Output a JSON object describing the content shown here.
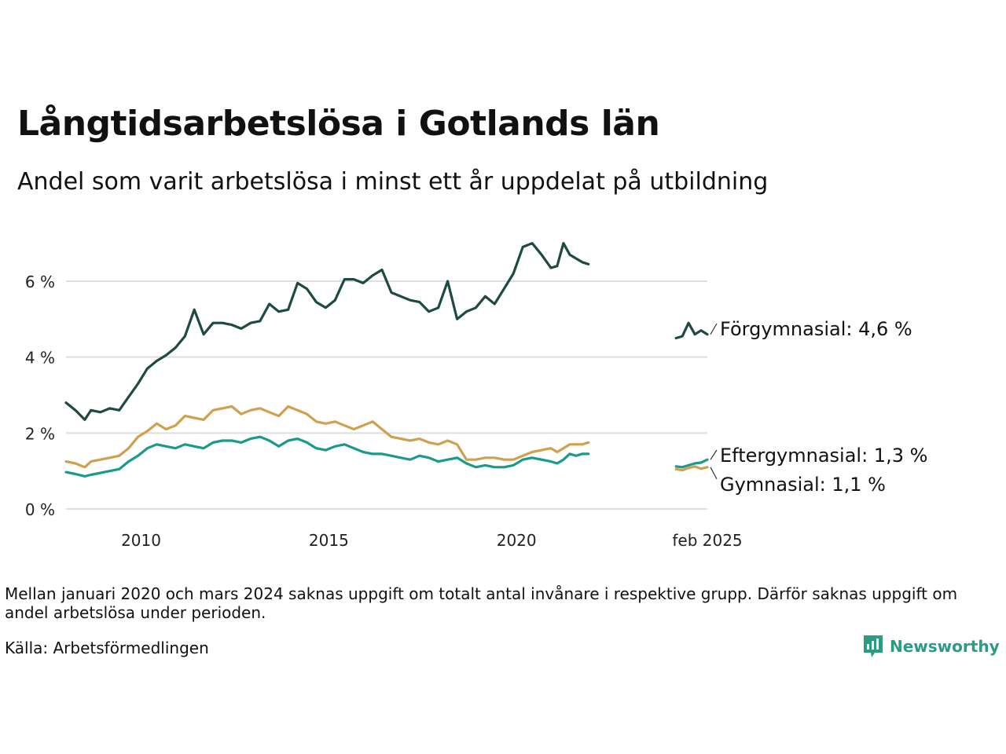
{
  "title": "Långtidsarbetslösa i Gotlands län",
  "subtitle": "Andel som varit arbetslösa i minst ett år uppdelat på utbildning",
  "note": "Mellan januari 2020 och mars 2024 saknas uppgift om totalt antal invånare i respektive grupp. Därför saknas uppgift om andel arbetslösa under perioden.",
  "source": "Källa: Arbetsförmedlingen",
  "brand": {
    "name": "Newsworthy",
    "color": "#2b9b83"
  },
  "chart_data": {
    "type": "line",
    "title": "Långtidsarbetslösa i Gotlands län",
    "subtitle": "Andel som varit arbetslösa i minst ett år uppdelat på utbildning",
    "y_ticks": [
      {
        "value": 0,
        "label": "0 %"
      },
      {
        "value": 2,
        "label": "2 %"
      },
      {
        "value": 4,
        "label": "4 %"
      },
      {
        "value": 6,
        "label": "6 %"
      }
    ],
    "x_ticks": [
      {
        "value": "2010",
        "label": "2010"
      },
      {
        "value": "2015",
        "label": "2015"
      },
      {
        "value": "2020",
        "label": "2020"
      },
      {
        "value": "2025-02",
        "label": "feb 2025"
      }
    ],
    "ylim": [
      0,
      7.2
    ],
    "xlim": [
      "2008-01",
      "2025-02"
    ],
    "grid": true,
    "series": [
      {
        "name": "Förgymnasial",
        "end_label": "Förgymnasial: 4,6 %",
        "color": "#1f4a43",
        "segments": [
          {
            "x": [
              "2008-01",
              "2008-04",
              "2008-07",
              "2008-09",
              "2008-12",
              "2009-03",
              "2009-06",
              "2009-09",
              "2009-12",
              "2010-03",
              "2010-06",
              "2010-09",
              "2010-12",
              "2011-03",
              "2011-06",
              "2011-09",
              "2011-12",
              "2012-03",
              "2012-06",
              "2012-09",
              "2012-12",
              "2013-03",
              "2013-06",
              "2013-09",
              "2013-12",
              "2014-03",
              "2014-06",
              "2014-09",
              "2014-12",
              "2015-03",
              "2015-06",
              "2015-09",
              "2015-12",
              "2016-03",
              "2016-06",
              "2016-09",
              "2016-12",
              "2017-03",
              "2017-06",
              "2017-09",
              "2017-12",
              "2018-03",
              "2018-06",
              "2018-09",
              "2018-12",
              "2019-03",
              "2019-06",
              "2019-09",
              "2019-12",
              "2020-03",
              "2020-06",
              "2020-09",
              "2020-12",
              "2021-02",
              "2021-04",
              "2021-06",
              "2021-08",
              "2021-10",
              "2021-12"
            ],
            "y": [
              2.8,
              2.6,
              2.35,
              2.6,
              2.55,
              2.65,
              2.6,
              2.95,
              3.3,
              3.7,
              3.9,
              4.05,
              4.25,
              4.55,
              5.25,
              4.6,
              4.9,
              4.9,
              4.85,
              4.75,
              4.9,
              4.95,
              5.4,
              5.2,
              5.25,
              5.95,
              5.8,
              5.45,
              5.3,
              5.5,
              6.05,
              6.05,
              5.95,
              6.15,
              6.3,
              5.7,
              5.6,
              5.5,
              5.45,
              5.2,
              5.3,
              6.0,
              5.0,
              5.2,
              5.3,
              5.6,
              5.4,
              5.8,
              6.2,
              6.9,
              7.0,
              6.7,
              6.35,
              6.4,
              7.0,
              6.7,
              6.6,
              6.5,
              6.45
            ]
          },
          {
            "x": [
              "2024-04",
              "2024-06",
              "2024-08",
              "2024-10",
              "2024-12",
              "2025-02"
            ],
            "y": [
              4.5,
              4.55,
              4.9,
              4.6,
              4.7,
              4.6
            ]
          }
        ]
      },
      {
        "name": "Eftergymnasial",
        "end_label": "Eftergymnasial: 1,3 %",
        "color": "#1a9a8a",
        "segments": [
          {
            "x": [
              "2008-01",
              "2008-04",
              "2008-07",
              "2008-09",
              "2008-12",
              "2009-03",
              "2009-06",
              "2009-09",
              "2009-12",
              "2010-03",
              "2010-06",
              "2010-09",
              "2010-12",
              "2011-03",
              "2011-06",
              "2011-09",
              "2011-12",
              "2012-03",
              "2012-06",
              "2012-09",
              "2012-12",
              "2013-03",
              "2013-06",
              "2013-09",
              "2013-12",
              "2014-03",
              "2014-06",
              "2014-09",
              "2014-12",
              "2015-03",
              "2015-06",
              "2015-09",
              "2015-12",
              "2016-03",
              "2016-06",
              "2016-09",
              "2016-12",
              "2017-03",
              "2017-06",
              "2017-09",
              "2017-12",
              "2018-03",
              "2018-06",
              "2018-09",
              "2018-12",
              "2019-03",
              "2019-06",
              "2019-09",
              "2019-12",
              "2020-03",
              "2020-06",
              "2020-09",
              "2020-12",
              "2021-02",
              "2021-04",
              "2021-06",
              "2021-08",
              "2021-10",
              "2021-12"
            ],
            "y": [
              0.97,
              0.92,
              0.86,
              0.9,
              0.95,
              1.0,
              1.05,
              1.25,
              1.4,
              1.6,
              1.7,
              1.65,
              1.6,
              1.7,
              1.65,
              1.6,
              1.75,
              1.8,
              1.8,
              1.75,
              1.85,
              1.9,
              1.8,
              1.65,
              1.8,
              1.85,
              1.75,
              1.6,
              1.55,
              1.65,
              1.7,
              1.6,
              1.5,
              1.45,
              1.45,
              1.4,
              1.35,
              1.3,
              1.4,
              1.35,
              1.25,
              1.3,
              1.35,
              1.2,
              1.1,
              1.15,
              1.1,
              1.1,
              1.15,
              1.3,
              1.35,
              1.3,
              1.25,
              1.2,
              1.3,
              1.45,
              1.4,
              1.45,
              1.45
            ]
          },
          {
            "x": [
              "2024-04",
              "2024-06",
              "2024-08",
              "2024-10",
              "2024-12",
              "2025-02"
            ],
            "y": [
              1.12,
              1.1,
              1.15,
              1.2,
              1.22,
              1.3
            ]
          }
        ]
      },
      {
        "name": "Gymnasial",
        "end_label": "Gymnasial: 1,1 %",
        "color": "#cfa04f",
        "segments": [
          {
            "x": [
              "2008-01",
              "2008-04",
              "2008-07",
              "2008-09",
              "2008-12",
              "2009-03",
              "2009-06",
              "2009-09",
              "2009-12",
              "2010-03",
              "2010-06",
              "2010-09",
              "2010-12",
              "2011-03",
              "2011-06",
              "2011-09",
              "2011-12",
              "2012-03",
              "2012-06",
              "2012-09",
              "2012-12",
              "2013-03",
              "2013-06",
              "2013-09",
              "2013-12",
              "2014-03",
              "2014-06",
              "2014-09",
              "2014-12",
              "2015-03",
              "2015-06",
              "2015-09",
              "2015-12",
              "2016-03",
              "2016-06",
              "2016-09",
              "2016-12",
              "2017-03",
              "2017-06",
              "2017-09",
              "2017-12",
              "2018-03",
              "2018-06",
              "2018-09",
              "2018-12",
              "2019-03",
              "2019-06",
              "2019-09",
              "2019-12",
              "2020-03",
              "2020-06",
              "2020-09",
              "2020-12",
              "2021-02",
              "2021-04",
              "2021-06",
              "2021-08",
              "2021-10",
              "2021-12"
            ],
            "y": [
              1.25,
              1.2,
              1.1,
              1.25,
              1.3,
              1.35,
              1.4,
              1.6,
              1.9,
              2.05,
              2.25,
              2.1,
              2.2,
              2.45,
              2.4,
              2.35,
              2.6,
              2.65,
              2.7,
              2.5,
              2.6,
              2.65,
              2.55,
              2.45,
              2.7,
              2.6,
              2.5,
              2.3,
              2.25,
              2.3,
              2.2,
              2.1,
              2.2,
              2.3,
              2.1,
              1.9,
              1.85,
              1.8,
              1.85,
              1.75,
              1.7,
              1.8,
              1.7,
              1.3,
              1.3,
              1.35,
              1.35,
              1.3,
              1.3,
              1.4,
              1.5,
              1.55,
              1.6,
              1.5,
              1.6,
              1.7,
              1.7,
              1.7,
              1.75
            ]
          },
          {
            "x": [
              "2024-04",
              "2024-06",
              "2024-08",
              "2024-10",
              "2024-12",
              "2025-02"
            ],
            "y": [
              1.05,
              1.02,
              1.08,
              1.12,
              1.06,
              1.1
            ]
          }
        ]
      }
    ]
  }
}
